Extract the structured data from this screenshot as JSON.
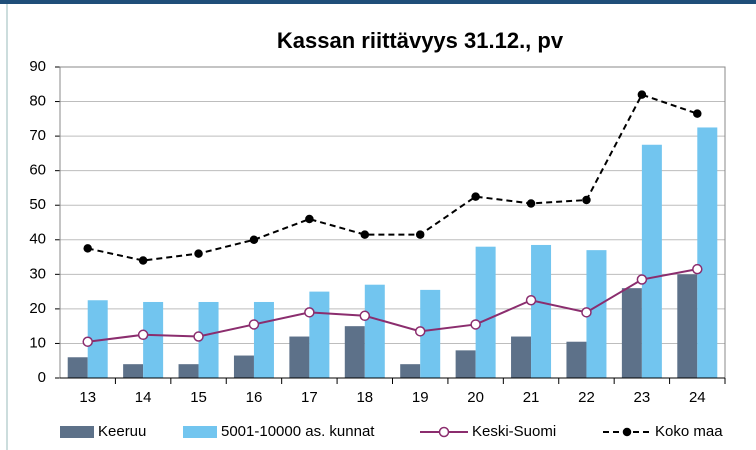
{
  "chart_data": {
    "type": "bar",
    "title": "Kassan riittävyys 31.12., pv",
    "categories": [
      "13",
      "14",
      "15",
      "16",
      "17",
      "18",
      "19",
      "20",
      "21",
      "22",
      "23",
      "24"
    ],
    "series": [
      {
        "name": "Keeruu",
        "type": "bar",
        "color": "#5d7189",
        "values": [
          6,
          4,
          4,
          6.5,
          12,
          15,
          4,
          8,
          12,
          10.5,
          26,
          30
        ]
      },
      {
        "name": "5001-10000 as. kunnat",
        "type": "bar",
        "color": "#72c5ef",
        "values": [
          22.5,
          22,
          22,
          22,
          25,
          27,
          25.5,
          38,
          38.5,
          37,
          67.5,
          72.5
        ]
      },
      {
        "name": "Keski-Suomi",
        "type": "line",
        "color": "#8b2d6e",
        "marker": "hollow",
        "dashed": false,
        "values": [
          10.5,
          12.5,
          12,
          15.5,
          19,
          18,
          13.5,
          15.5,
          22.5,
          19,
          28.5,
          31.5
        ]
      },
      {
        "name": "Koko maa",
        "type": "line",
        "color": "#000000",
        "marker": "filled",
        "dashed": true,
        "values": [
          37.5,
          34,
          36,
          40,
          46,
          41.5,
          41.5,
          52.5,
          50.5,
          51.5,
          82,
          76.5
        ]
      }
    ],
    "ylim": [
      0,
      90
    ],
    "yticks": [
      0,
      10,
      20,
      30,
      40,
      50,
      60,
      70,
      80,
      90
    ],
    "grid": true
  }
}
